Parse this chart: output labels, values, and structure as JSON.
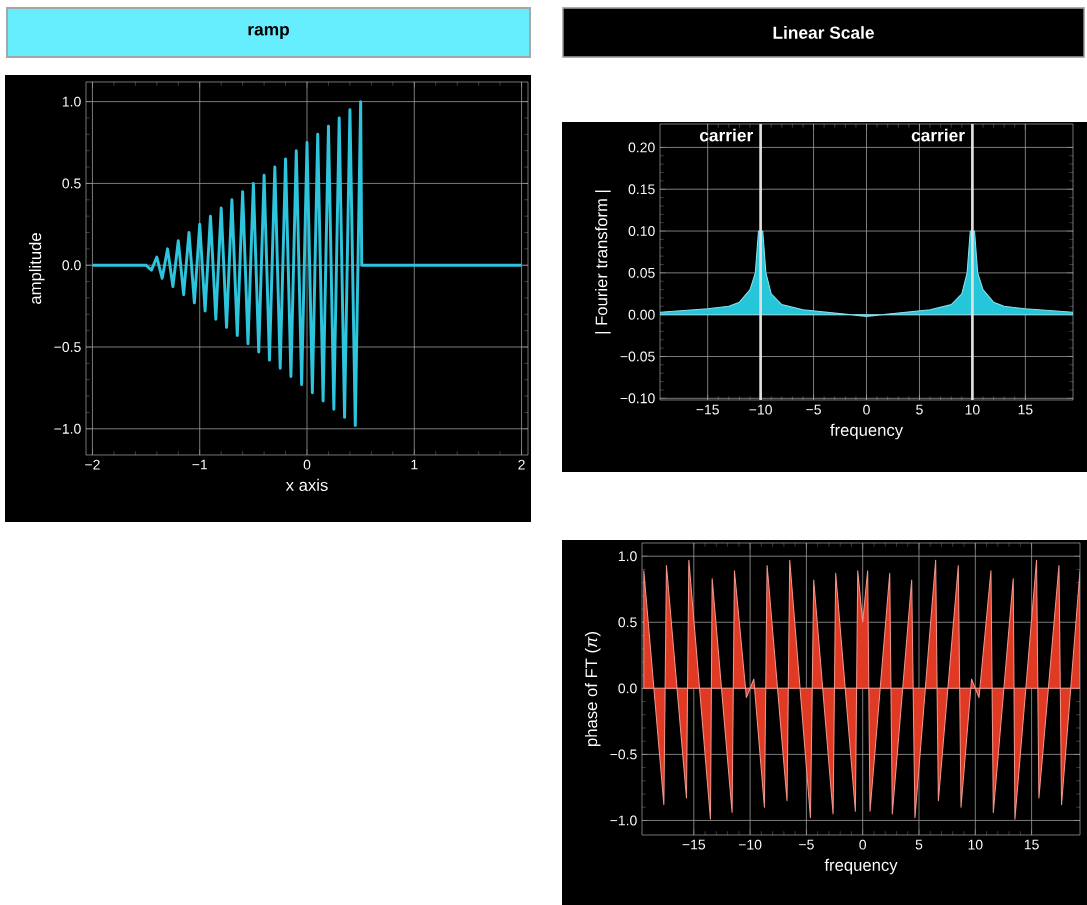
{
  "chart_data": [
    {
      "type": "line",
      "title": "ramp",
      "xlabel": "x axis",
      "ylabel": "amplitude",
      "color": "#2ec4dc",
      "grid": true,
      "xlim": [
        -2.06,
        2.06
      ],
      "ylim": [
        -1.16,
        1.12
      ],
      "xticks": [
        {
          "value": -2,
          "label": "−2"
        },
        {
          "value": -1,
          "label": "−1"
        },
        0,
        1,
        2
      ],
      "yticks": [
        {
          "value": -1,
          "label": "−1.0"
        },
        {
          "value": -0.5,
          "label": "−0.5"
        },
        {
          "value": 0,
          "label": "0.0"
        },
        {
          "value": 0.5,
          "label": "0.5"
        },
        {
          "value": 1,
          "label": "1.0"
        }
      ],
      "x": [
        -2,
        -1.5,
        -1.45,
        -1.4,
        -1.35,
        -1.3,
        -1.25,
        -1.2,
        -1.15,
        -1.1,
        -1.05,
        -1,
        -0.95,
        -0.9,
        -0.85,
        -0.8,
        -0.75,
        -0.7,
        -0.65,
        -0.6,
        -0.55,
        -0.5,
        -0.45,
        -0.4,
        -0.35,
        -0.3,
        -0.25,
        -0.2,
        -0.15,
        -0.1,
        -0.05,
        0,
        0.05,
        0.1,
        0.15,
        0.2,
        0.25,
        0.3,
        0.35,
        0.4,
        0.45,
        0.5,
        0.51,
        2
      ],
      "values": [
        0,
        0,
        -0.03,
        0.05,
        -0.08,
        0.1,
        -0.13,
        0.15,
        -0.18,
        0.2,
        -0.23,
        0.25,
        -0.28,
        0.3,
        -0.33,
        0.35,
        -0.38,
        0.4,
        -0.43,
        0.45,
        -0.48,
        0.5,
        -0.53,
        0.55,
        -0.58,
        0.6,
        -0.63,
        0.65,
        -0.68,
        0.7,
        -0.73,
        0.75,
        -0.78,
        0.8,
        -0.83,
        0.85,
        -0.88,
        0.9,
        -0.93,
        0.95,
        -0.98,
        1.0,
        0,
        0
      ]
    },
    {
      "type": "area",
      "title": "Linear Scale",
      "xlabel": "frequency",
      "ylabel": "| Fourier transform |",
      "color": "#26c6da",
      "grid": true,
      "xlim": [
        -19.5,
        19.5
      ],
      "ylim": [
        -0.102,
        0.228
      ],
      "xticks": [
        {
          "value": -15,
          "label": "−15"
        },
        {
          "value": -10,
          "label": "−10"
        },
        {
          "value": -5,
          "label": "−5"
        },
        0,
        5,
        10,
        15
      ],
      "yticks": [
        {
          "value": -0.1,
          "label": "−0.10"
        },
        {
          "value": -0.05,
          "label": "−0.05"
        },
        {
          "value": 0,
          "label": "0.00"
        },
        {
          "value": 0.05,
          "label": "0.05"
        },
        {
          "value": 0.1,
          "label": "0.10"
        },
        {
          "value": 0.15,
          "label": "0.15"
        },
        {
          "value": 0.2,
          "label": "0.20"
        }
      ],
      "x": [
        -19.5,
        -15,
        -13,
        -12,
        -11,
        -10.5,
        -10.2,
        -10,
        -9.8,
        -9.5,
        -9,
        -8,
        -6,
        -3,
        0,
        3,
        6,
        8,
        9,
        9.5,
        9.8,
        10,
        10.2,
        10.5,
        11,
        12,
        13,
        15,
        19.5
      ],
      "values": [
        0.003,
        0.007,
        0.01,
        0.015,
        0.03,
        0.05,
        0.1,
        null,
        0.1,
        0.05,
        0.025,
        0.012,
        0.006,
        0.002,
        -0.002,
        0.002,
        0.006,
        0.012,
        0.025,
        0.05,
        0.1,
        null,
        0.1,
        0.05,
        0.03,
        0.015,
        0.01,
        0.007,
        0.003
      ],
      "ref_lines": [
        {
          "axis": "x",
          "value": -10,
          "label": "carrier",
          "color": "#e0e0e0"
        },
        {
          "axis": "x",
          "value": 10,
          "label": "carrier",
          "color": "#e0e0e0"
        }
      ]
    },
    {
      "type": "area",
      "xlabel": "frequency",
      "ylabel": "phase of FT (*π*)",
      "color": "#e03a25",
      "grid": true,
      "xlim": [
        -19.6,
        19.3
      ],
      "ylim": [
        -1.11,
        1.1
      ],
      "xticks": [
        {
          "value": -15,
          "label": "−15"
        },
        {
          "value": -10,
          "label": "−10"
        },
        {
          "value": -5,
          "label": "−5"
        },
        0,
        5,
        10,
        15
      ],
      "yticks": [
        {
          "value": -1,
          "label": "−1.0"
        },
        {
          "value": -0.5,
          "label": "−0.5"
        },
        {
          "value": 0,
          "label": "0.0"
        },
        {
          "value": 0.5,
          "label": "0.5"
        },
        {
          "value": 1,
          "label": "1.0"
        }
      ],
      "x": [
        -19.44,
        -17.66,
        -17.43,
        -15.65,
        -15.44,
        -13.52,
        -13.37,
        -11.6,
        -11.39,
        -10.33,
        -9.67,
        -8.73,
        -8.49,
        -6.72,
        -6.48,
        -4.64,
        -4.35,
        -2.63,
        -2.4,
        -0.65,
        -0.44,
        0,
        0.44,
        0.65,
        2.4,
        2.63,
        4.35,
        4.64,
        6.48,
        6.72,
        8.49,
        8.73,
        9.67,
        10.33,
        11.39,
        11.6,
        13.37,
        13.52,
        15.44,
        15.65,
        17.43,
        17.66,
        19.3
      ],
      "values": [
        0.89,
        -0.88,
        0.93,
        -0.83,
        0.97,
        -0.99,
        0.83,
        -0.94,
        0.89,
        -0.07,
        0.07,
        -0.9,
        0.93,
        -0.85,
        0.97,
        -0.98,
        0.82,
        -0.95,
        0.87,
        -0.93,
        0.89,
        0.5,
        0.89,
        -0.93,
        0.87,
        -0.95,
        0.82,
        -0.98,
        0.97,
        -0.85,
        0.93,
        -0.9,
        0.07,
        -0.07,
        0.89,
        -0.94,
        0.83,
        -0.99,
        0.97,
        -0.83,
        0.93,
        -0.88,
        0.89
      ]
    }
  ]
}
